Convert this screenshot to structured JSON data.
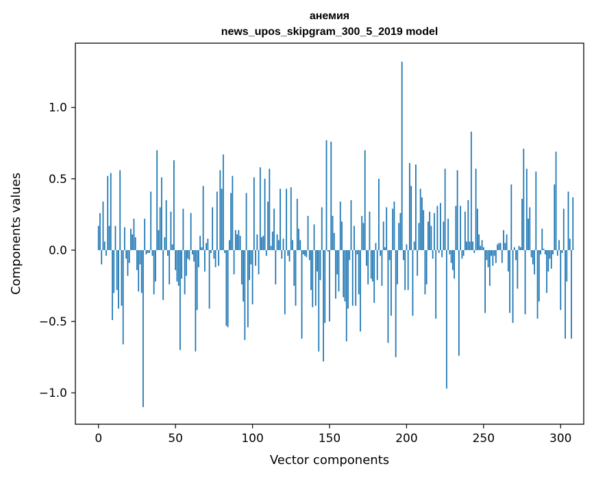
{
  "chart_data": {
    "type": "bar",
    "title_line1": "анемия",
    "title_line2": "news_upos_skipgram_300_5_2019 model",
    "xlabel": "Vector components",
    "ylabel": "Components values",
    "xlim": [
      -15,
      315
    ],
    "ylim": [
      -1.22,
      1.45
    ],
    "xticks": [
      0,
      50,
      100,
      150,
      200,
      250,
      300
    ],
    "xtick_labels": [
      "0",
      "50",
      "100",
      "150",
      "200",
      "250",
      "300"
    ],
    "yticks": [
      -1.0,
      -0.5,
      0.0,
      0.5,
      1.0
    ],
    "ytick_labels": [
      "−1.0",
      "−0.5",
      "0.0",
      "0.5",
      "1.0"
    ],
    "bar_color": "#1f77b4",
    "grid": false,
    "values": [
      0.17,
      0.26,
      -0.1,
      0.34,
      0.06,
      -0.04,
      0.52,
      0.17,
      0.54,
      -0.49,
      -0.3,
      0.17,
      -0.28,
      -0.41,
      0.56,
      -0.39,
      -0.66,
      0.16,
      -0.06,
      -0.18,
      -0.09,
      0.15,
      0.11,
      0.22,
      0.09,
      -0.14,
      -0.29,
      -0.1,
      -0.3,
      -1.1,
      0.22,
      -0.03,
      -0.02,
      -0.02,
      0.41,
      -0.04,
      -0.31,
      -0.22,
      0.7,
      0.14,
      0.3,
      0.51,
      -0.35,
      0.09,
      0.35,
      -0.04,
      -0.24,
      0.27,
      0.04,
      0.63,
      -0.14,
      -0.22,
      -0.25,
      -0.7,
      -0.2,
      0.29,
      -0.31,
      -0.18,
      -0.06,
      -0.07,
      0.26,
      -0.03,
      -0.08,
      -0.71,
      -0.42,
      -0.12,
      0.1,
      0.02,
      0.45,
      -0.15,
      0.05,
      0.08,
      -0.41,
      -0.02,
      0.3,
      -0.06,
      -0.12,
      0.41,
      -0.11,
      0.56,
      0.43,
      0.67,
      -0.02,
      -0.53,
      -0.54,
      0.07,
      0.4,
      0.52,
      -0.17,
      0.14,
      0.11,
      0.14,
      0.1,
      -0.24,
      -0.36,
      -0.63,
      0.4,
      -0.54,
      -0.21,
      -0.1,
      -0.38,
      0.51,
      -0.11,
      0.11,
      -0.17,
      0.58,
      0.09,
      0.1,
      0.5,
      -0.04,
      0.34,
      0.57,
      0.03,
      0.13,
      0.29,
      -0.24,
      0.11,
      0.07,
      0.43,
      -0.06,
      0.08,
      -0.45,
      0.43,
      -0.04,
      -0.08,
      0.44,
      0.07,
      -0.25,
      -0.39,
      0.36,
      0.15,
      0.07,
      -0.62,
      -0.03,
      -0.04,
      -0.05,
      0.24,
      -0.07,
      -0.28,
      -0.4,
      0.18,
      -0.39,
      -0.15,
      -0.71,
      -0.21,
      0.3,
      -0.78,
      -0.51,
      0.77,
      -0.01,
      -0.5,
      0.76,
      0.24,
      0.12,
      -0.34,
      -0.17,
      -0.29,
      0.34,
      0.2,
      -0.33,
      -0.36,
      -0.64,
      -0.41,
      -0.07,
      0.35,
      -0.39,
      0.17,
      -0.39,
      -0.03,
      -0.31,
      -0.57,
      0.24,
      0.19,
      0.7,
      -0.11,
      -0.24,
      0.27,
      -0.2,
      -0.22,
      -0.37,
      0.05,
      -0.21,
      0.5,
      -0.04,
      -0.25,
      0.2,
      0.02,
      0.3,
      -0.65,
      -0.07,
      -0.46,
      0.29,
      0.34,
      -0.75,
      -0.24,
      0.19,
      0.26,
      1.32,
      -0.07,
      -0.28,
      0.04,
      -0.28,
      0.61,
      0.45,
      -0.46,
      0.06,
      0.6,
      -0.18,
      0.19,
      0.43,
      0.37,
      0.28,
      -0.31,
      -0.24,
      0.2,
      0.27,
      0.17,
      -0.06,
      0.26,
      -0.48,
      0.31,
      -0.02,
      0.33,
      -0.05,
      0.2,
      0.57,
      -0.97,
      0.22,
      -0.03,
      -0.09,
      -0.14,
      -0.2,
      0.31,
      0.56,
      -0.74,
      0.31,
      -0.06,
      -0.04,
      0.27,
      0.06,
      0.35,
      0.06,
      0.83,
      0.06,
      -0.02,
      0.57,
      0.29,
      0.11,
      0.03,
      0.07,
      0.02,
      -0.44,
      -0.07,
      -0.12,
      -0.25,
      -0.04,
      -0.11,
      -0.04,
      -0.09,
      0.04,
      0.05,
      0.05,
      -0.09,
      0.14,
      0.05,
      0.11,
      -0.15,
      -0.44,
      0.46,
      -0.51,
      0.02,
      -0.07,
      -0.27,
      0.03,
      0.02,
      0.36,
      0.71,
      -0.45,
      0.57,
      0.22,
      0.3,
      -0.05,
      -0.1,
      -0.17,
      0.55,
      -0.48,
      -0.36,
      -0.03,
      0.15,
      0.01,
      -0.03,
      -0.3,
      -0.15,
      -0.06,
      -0.13,
      -0.03,
      0.46,
      0.69,
      -0.04,
      0.07,
      -0.42,
      -0.02,
      0.29,
      -0.62,
      -0.22,
      0.41,
      0.08,
      -0.62,
      0.37
    ]
  }
}
